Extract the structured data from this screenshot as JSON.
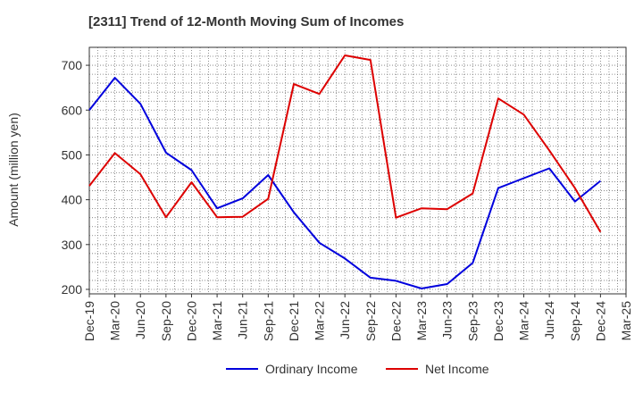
{
  "chart_data": {
    "type": "line",
    "title": "[2311]  Trend of 12-Month Moving Sum of Incomes",
    "ylabel": "Amount (million yen)",
    "xlabel": "",
    "ylim": [
      190,
      740
    ],
    "yticks": [
      200,
      300,
      400,
      500,
      600,
      700
    ],
    "grid": true,
    "legend_position": "bottom",
    "categories": [
      "Dec-19",
      "Mar-20",
      "Jun-20",
      "Sep-20",
      "Dec-20",
      "Mar-21",
      "Jun-21",
      "Sep-21",
      "Dec-21",
      "Mar-22",
      "Jun-22",
      "Sep-22",
      "Dec-22",
      "Mar-23",
      "Jun-23",
      "Sep-23",
      "Dec-23",
      "Mar-24",
      "Jun-24",
      "Sep-24",
      "Dec-24",
      "Mar-25"
    ],
    "series": [
      {
        "name": "Ordinary Income",
        "color": "#0000dd",
        "values": [
          600,
          672,
          614,
          505,
          466,
          381,
          403,
          455,
          372,
          304,
          269,
          226,
          219,
          202,
          212,
          259,
          426,
          448,
          470,
          396,
          442,
          null
        ]
      },
      {
        "name": "Net Income",
        "color": "#dd0000",
        "values": [
          431,
          504,
          457,
          361,
          439,
          361,
          362,
          402,
          658,
          636,
          722,
          712,
          360,
          381,
          379,
          414,
          626,
          590,
          510,
          426,
          328,
          null
        ]
      }
    ]
  }
}
